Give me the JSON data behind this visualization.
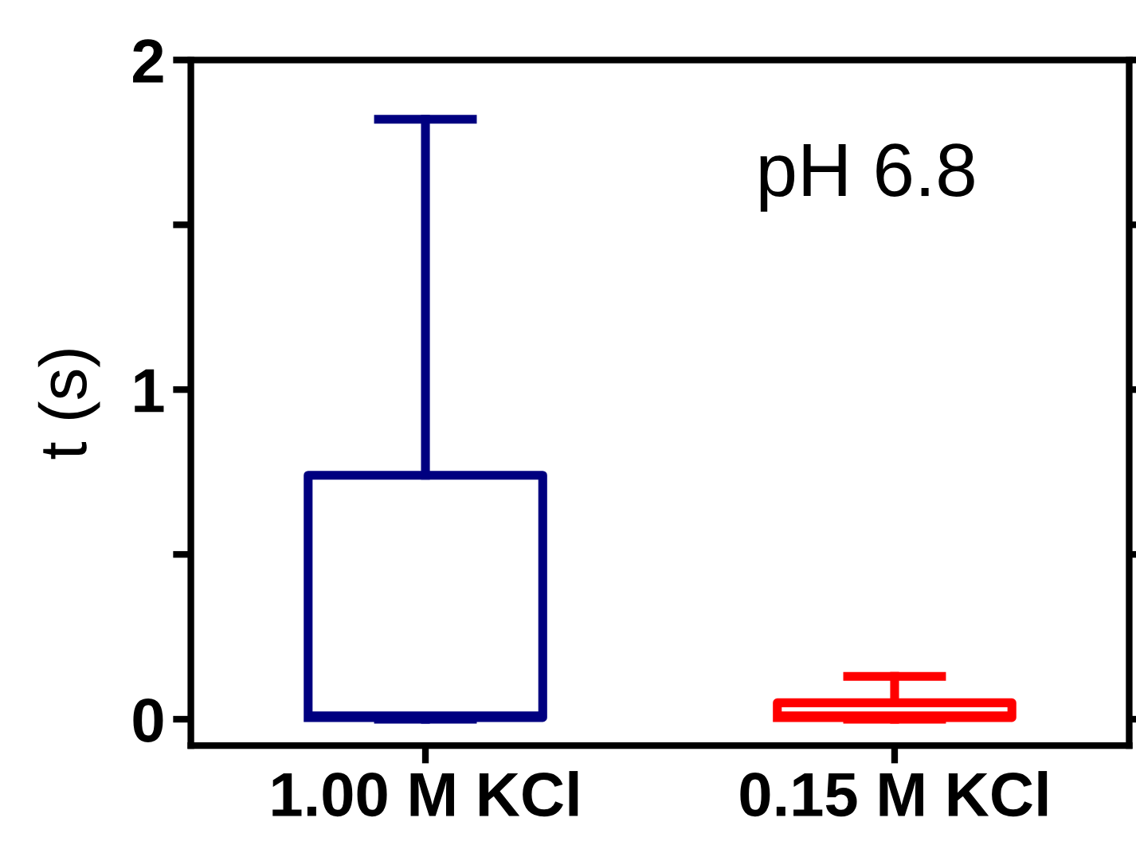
{
  "chart_data": {
    "type": "box",
    "ylabel": "t (s)",
    "categories": [
      "1.00 M KCl",
      "0.15 M KCl"
    ],
    "series": [
      {
        "color": "#000080",
        "boxes": [
          {
            "low": 0,
            "q1": 0.005,
            "median": 0.01,
            "q3": 0.74,
            "high": 1.82
          },
          null
        ]
      },
      {
        "color": "#ff0000",
        "boxes": [
          null,
          {
            "low": 0,
            "q1": 0.005,
            "median": 0.01,
            "q3": 0.05,
            "high": 0.13
          }
        ]
      }
    ],
    "ylim": [
      -0.08,
      2
    ],
    "yticks": [
      0,
      1,
      2,
      {
        "value": 0.5,
        "label": null
      },
      {
        "value": 1.5,
        "label": null
      }
    ],
    "annotations": [
      "pH 6.8"
    ],
    "grid": false
  }
}
